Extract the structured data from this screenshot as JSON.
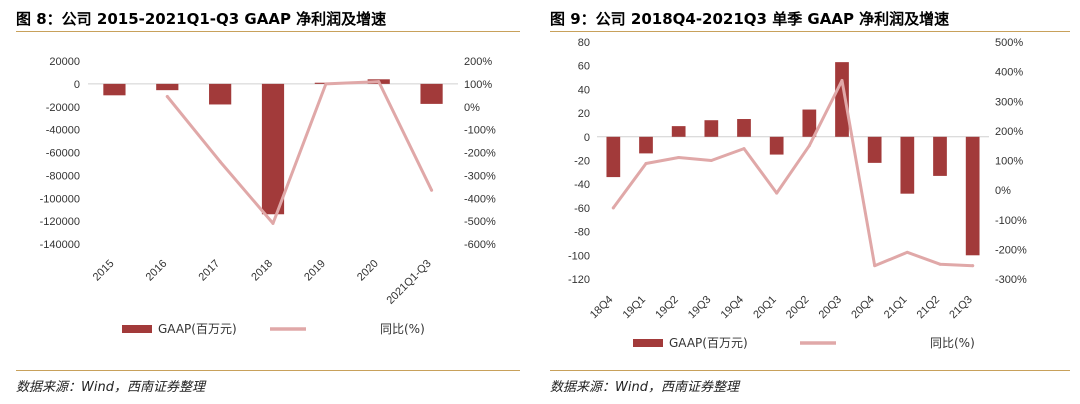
{
  "figures": [
    {
      "title": "图 8：公司 2015-2021Q1-Q3 GAAP 净利润及增速",
      "source": "数据来源：Wind，西南证券整理"
    },
    {
      "title": "图 9：公司 2018Q4-2021Q3 单季 GAAP 净利润及增速",
      "source": "数据来源：Wind，西南证券整理"
    }
  ],
  "colors": {
    "bar": "#a23a3a",
    "line": "#e0a8a8",
    "rule": "#c8a15b",
    "axis": "#d0d0d0"
  },
  "chart_data": [
    {
      "type": "bar",
      "categories": [
        "2015",
        "2016",
        "2017",
        "2018",
        "2019",
        "2020",
        "2021Q1-Q3"
      ],
      "series": [
        {
          "name": "GAAP(百万元)",
          "type": "bar",
          "axis": "left",
          "values": [
            -10000,
            -5500,
            -18000,
            -114000,
            1000,
            4000,
            -17500
          ]
        },
        {
          "name": "同比(%)",
          "type": "line",
          "axis": "right",
          "values": [
            null,
            45,
            -240,
            -510,
            100,
            110,
            -365
          ]
        }
      ],
      "y_left": {
        "min": -140000,
        "max": 20000,
        "step": 20000,
        "ticks": [
          "20000",
          "0",
          "-20000",
          "-40000",
          "-60000",
          "-80000",
          "-100000",
          "-120000",
          "-140000"
        ]
      },
      "y_right": {
        "min": -600,
        "max": 200,
        "step": 100,
        "ticks": [
          "200%",
          "100%",
          "0%",
          "-100%",
          "-200%",
          "-300%",
          "-400%",
          "-500%",
          "-600%"
        ]
      },
      "legend": [
        "GAAP(百万元)",
        "同比(%)"
      ],
      "legend_position": "bottom",
      "grid": false
    },
    {
      "type": "bar",
      "categories": [
        "18Q4",
        "19Q1",
        "19Q2",
        "19Q3",
        "19Q4",
        "20Q1",
        "20Q2",
        "20Q3",
        "20Q4",
        "21Q1",
        "21Q2",
        "21Q3"
      ],
      "series": [
        {
          "name": "GAAP(百万元)",
          "type": "bar",
          "axis": "left",
          "values": [
            -34,
            -14,
            9,
            14,
            15,
            -15,
            23,
            63,
            -22,
            -48,
            -33,
            -100
          ]
        },
        {
          "name": "同比(%)",
          "type": "line",
          "axis": "right",
          "values": [
            -60,
            90,
            110,
            100,
            140,
            -10,
            150,
            370,
            -255,
            -210,
            -250,
            -255
          ]
        }
      ],
      "y_left": {
        "min": -120,
        "max": 80,
        "step": 20,
        "ticks": [
          "80",
          "60",
          "40",
          "20",
          "0",
          "-20",
          "-40",
          "-60",
          "-80",
          "-100",
          "-120"
        ]
      },
      "y_right": {
        "min": -300,
        "max": 500,
        "step": 100,
        "ticks": [
          "500%",
          "400%",
          "300%",
          "200%",
          "100%",
          "0%",
          "-100%",
          "-200%",
          "-300%"
        ]
      },
      "legend": [
        "GAAP(百万元)",
        "同比(%)"
      ],
      "legend_position": "bottom",
      "grid": false
    }
  ]
}
